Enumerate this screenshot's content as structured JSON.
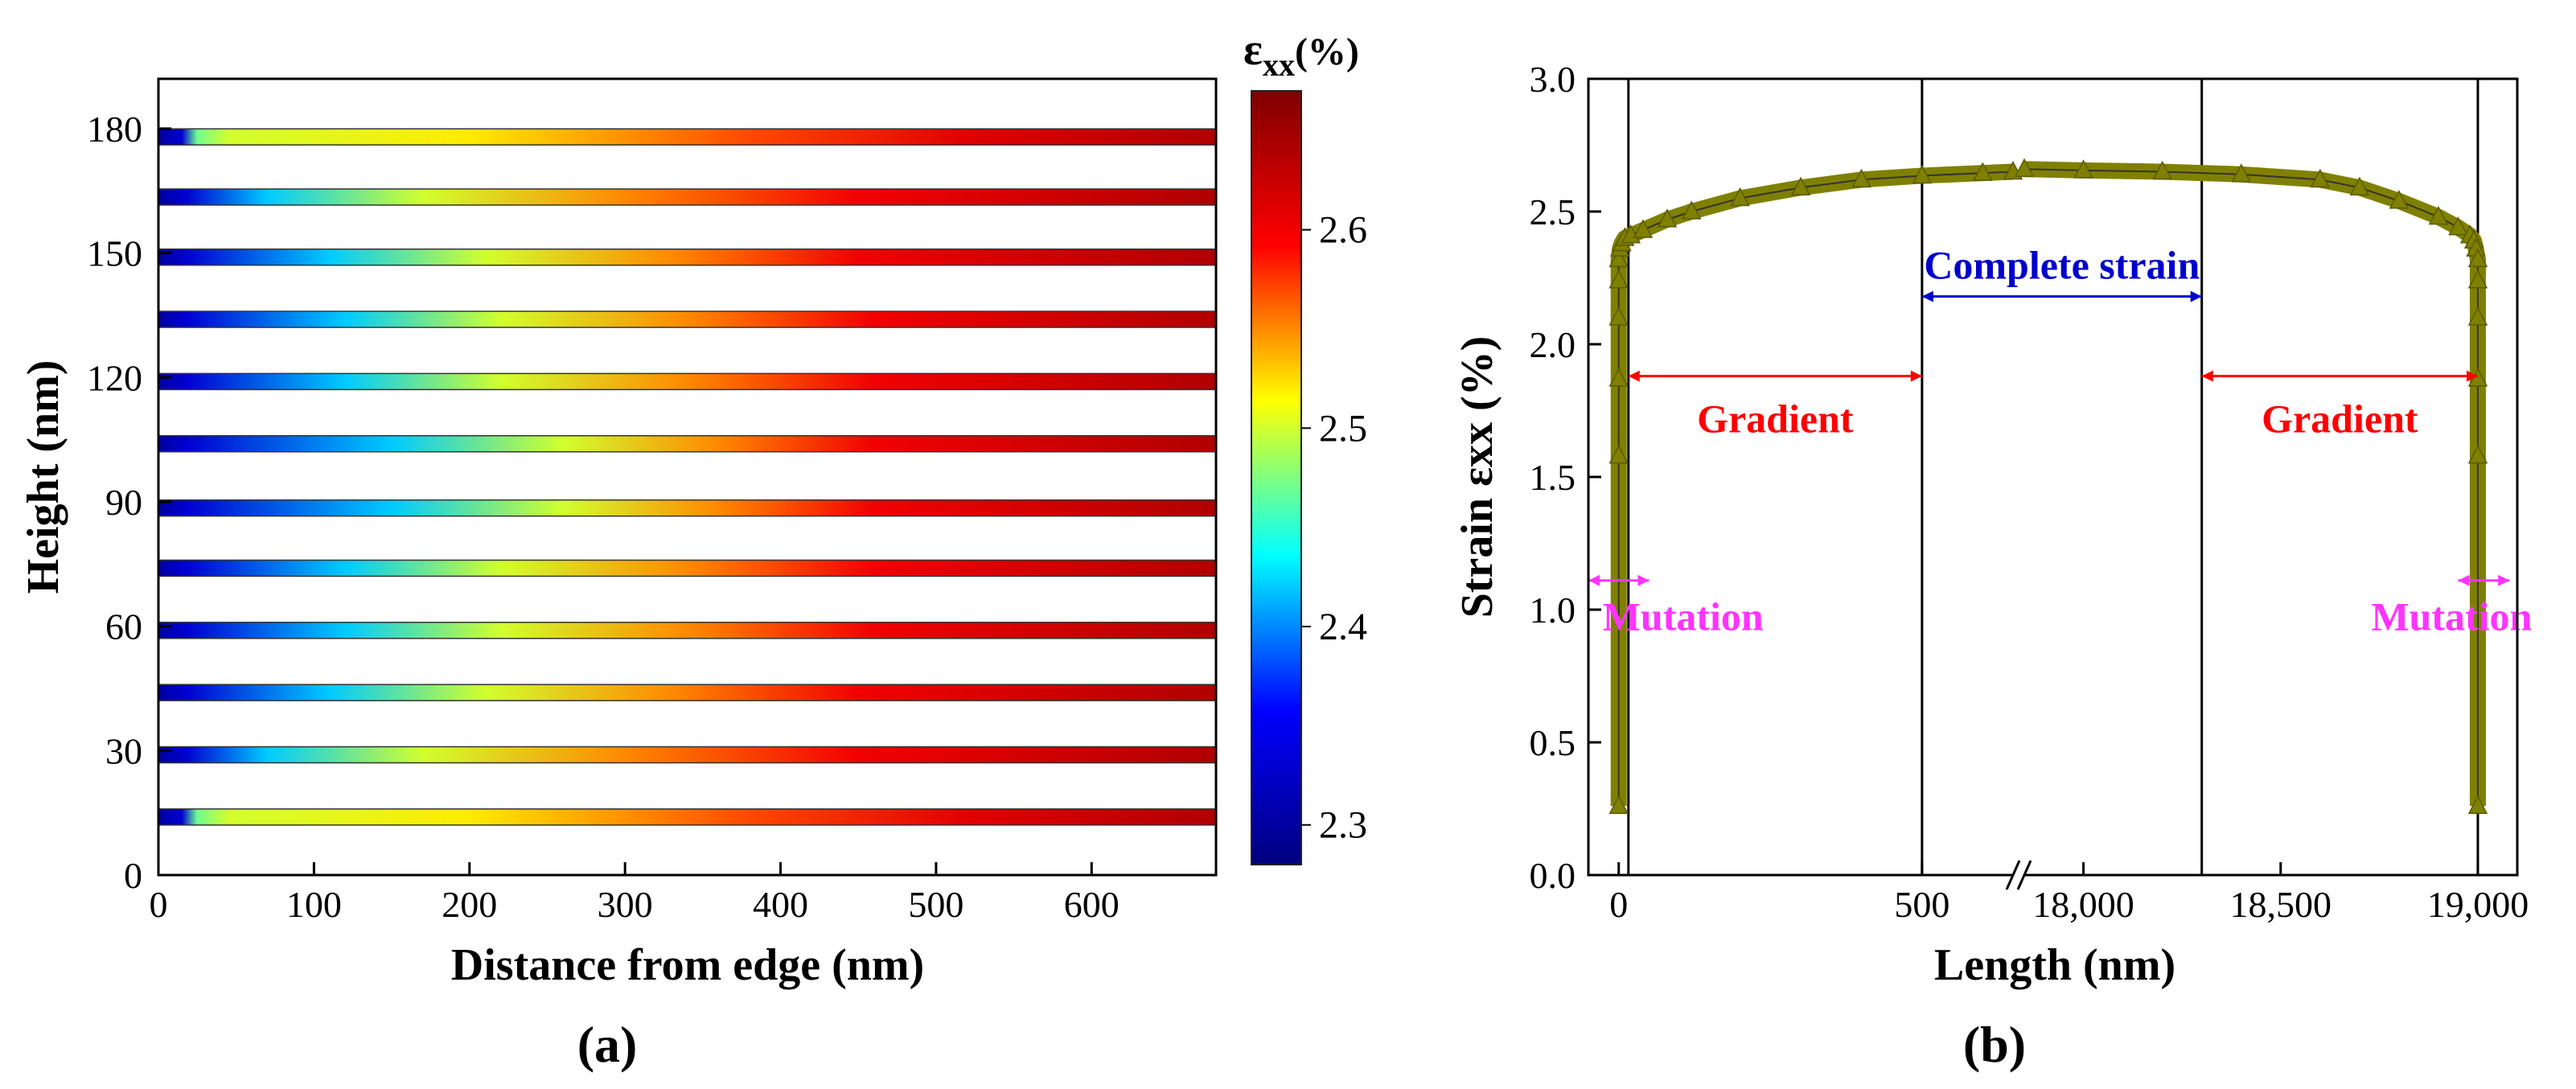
{
  "chart_data": [
    {
      "panel": "(a)",
      "type": "heatmap",
      "xlabel": "Distance from edge (nm)",
      "ylabel": "Height (nm)",
      "xlim": [
        0,
        680
      ],
      "ylim": [
        0,
        192
      ],
      "xticks": [
        0,
        100,
        200,
        300,
        400,
        500,
        600
      ],
      "yticks": [
        0,
        30,
        60,
        90,
        120,
        150,
        180
      ],
      "layers": [
        {
          "height": 178,
          "ramp": [
            [
              0,
              2.3
            ],
            [
              15,
              2.33
            ],
            [
              25,
              2.47
            ],
            [
              45,
              2.5
            ],
            [
              200,
              2.52
            ],
            [
              380,
              2.57
            ],
            [
              520,
              2.61
            ],
            [
              680,
              2.64
            ]
          ]
        },
        {
          "height": 163.5,
          "ramp": [
            [
              0,
              2.3
            ],
            [
              18,
              2.33
            ],
            [
              70,
              2.42
            ],
            [
              170,
              2.5
            ],
            [
              300,
              2.55
            ],
            [
              450,
              2.6
            ],
            [
              680,
              2.64
            ]
          ]
        },
        {
          "height": 149,
          "ramp": [
            [
              0,
              2.3
            ],
            [
              18,
              2.33
            ],
            [
              110,
              2.42
            ],
            [
              210,
              2.5
            ],
            [
              330,
              2.55
            ],
            [
              450,
              2.6
            ],
            [
              680,
              2.64
            ]
          ]
        },
        {
          "height": 134,
          "ramp": [
            [
              0,
              2.3
            ],
            [
              18,
              2.33
            ],
            [
              120,
              2.42
            ],
            [
              220,
              2.5
            ],
            [
              340,
              2.55
            ],
            [
              460,
              2.6
            ],
            [
              680,
              2.64
            ]
          ]
        },
        {
          "height": 119,
          "ramp": [
            [
              0,
              2.3
            ],
            [
              18,
              2.33
            ],
            [
              120,
              2.42
            ],
            [
              220,
              2.5
            ],
            [
              340,
              2.55
            ],
            [
              460,
              2.6
            ],
            [
              680,
              2.64
            ]
          ]
        },
        {
          "height": 104,
          "ramp": [
            [
              0,
              2.3
            ],
            [
              18,
              2.33
            ],
            [
              150,
              2.42
            ],
            [
              260,
              2.5
            ],
            [
              360,
              2.55
            ],
            [
              460,
              2.6
            ],
            [
              680,
              2.64
            ]
          ]
        },
        {
          "height": 88.5,
          "ramp": [
            [
              0,
              2.3
            ],
            [
              18,
              2.33
            ],
            [
              150,
              2.42
            ],
            [
              260,
              2.5
            ],
            [
              360,
              2.55
            ],
            [
              460,
              2.6
            ],
            [
              680,
              2.64
            ]
          ]
        },
        {
          "height": 74,
          "ramp": [
            [
              0,
              2.3
            ],
            [
              18,
              2.33
            ],
            [
              120,
              2.42
            ],
            [
              220,
              2.5
            ],
            [
              340,
              2.55
            ],
            [
              460,
              2.6
            ],
            [
              680,
              2.64
            ]
          ]
        },
        {
          "height": 59,
          "ramp": [
            [
              0,
              2.3
            ],
            [
              18,
              2.33
            ],
            [
              120,
              2.42
            ],
            [
              220,
              2.5
            ],
            [
              340,
              2.55
            ],
            [
              460,
              2.6
            ],
            [
              680,
              2.64
            ]
          ]
        },
        {
          "height": 44,
          "ramp": [
            [
              0,
              2.3
            ],
            [
              18,
              2.33
            ],
            [
              110,
              2.42
            ],
            [
              210,
              2.5
            ],
            [
              330,
              2.55
            ],
            [
              450,
              2.6
            ],
            [
              680,
              2.64
            ]
          ]
        },
        {
          "height": 29,
          "ramp": [
            [
              0,
              2.3
            ],
            [
              18,
              2.33
            ],
            [
              70,
              2.42
            ],
            [
              170,
              2.5
            ],
            [
              300,
              2.55
            ],
            [
              450,
              2.6
            ],
            [
              680,
              2.64
            ]
          ]
        },
        {
          "height": 14,
          "ramp": [
            [
              0,
              2.3
            ],
            [
              15,
              2.33
            ],
            [
              25,
              2.47
            ],
            [
              45,
              2.5
            ],
            [
              200,
              2.52
            ],
            [
              380,
              2.57
            ],
            [
              520,
              2.61
            ],
            [
              680,
              2.64
            ]
          ]
        }
      ],
      "colorbar": {
        "title_main": "ε",
        "title_sub": "xx",
        "title_unit": "(%)",
        "range": [
          2.28,
          2.67
        ],
        "ticks": [
          2.3,
          2.4,
          2.5,
          2.6
        ],
        "colormap": [
          "#00007f",
          "#0000ff",
          "#00ffff",
          "#ffff00",
          "#ff0000",
          "#7f0000"
        ]
      }
    },
    {
      "panel": "(b)",
      "type": "line",
      "xlabel": "Length (nm)",
      "ylabel": "Strain εxx (%)",
      "ylim": [
        0,
        3.0
      ],
      "yticks": [
        0.0,
        0.5,
        1.0,
        1.5,
        2.0,
        2.5,
        3.0
      ],
      "xaxis_segments": [
        {
          "xlim": [
            -50,
            650
          ],
          "xticks": [
            0,
            500
          ],
          "xticklabels": [
            "0",
            "500"
          ]
        },
        {
          "xlim": [
            17850,
            19100
          ],
          "xticks": [
            18000,
            18500,
            19000
          ],
          "xticklabels": [
            "18,000",
            "18,500",
            "19,000"
          ]
        }
      ],
      "axis_break": {
        "between": [
          650,
          17850
        ]
      },
      "series": [
        {
          "name": "Strain εxx",
          "color": "#808000",
          "x": [
            0,
            0,
            0,
            0,
            0,
            0,
            2,
            5,
            10,
            20,
            40,
            80,
            120,
            200,
            300,
            400,
            500,
            600,
            650,
            17850,
            18000,
            18200,
            18400,
            18600,
            18700,
            18800,
            18900,
            18950,
            18980,
            18990,
            18995,
            19000,
            19000,
            19000,
            19000,
            19000,
            19000
          ],
          "y": [
            0.26,
            1.58,
            1.87,
            2.1,
            2.24,
            2.32,
            2.36,
            2.38,
            2.4,
            2.41,
            2.43,
            2.47,
            2.5,
            2.55,
            2.59,
            2.62,
            2.635,
            2.645,
            2.65,
            2.66,
            2.655,
            2.65,
            2.64,
            2.62,
            2.59,
            2.54,
            2.48,
            2.44,
            2.41,
            2.39,
            2.36,
            2.32,
            2.24,
            2.1,
            1.87,
            1.58,
            0.26
          ]
        }
      ],
      "vertical_lines": [
        16,
        500,
        18300,
        19000
      ],
      "annotations": [
        {
          "text": "Complete strain",
          "color": "#0000cc",
          "from": 500,
          "to": 18300,
          "y": 2.18
        },
        {
          "text": "Gradient",
          "color": "#ff0000",
          "from": 16,
          "to": 500,
          "y": 1.88
        },
        {
          "text": "Gradient",
          "color": "#ff0000",
          "from": 18300,
          "to": 19000,
          "y": 1.88
        },
        {
          "text": "Mutation",
          "color": "#ff33ff",
          "from": -50,
          "to": 50,
          "y": 1.11
        },
        {
          "text": "Mutation",
          "color": "#ff33ff",
          "from": 18950,
          "to": 19080,
          "y": 1.11
        }
      ]
    }
  ]
}
